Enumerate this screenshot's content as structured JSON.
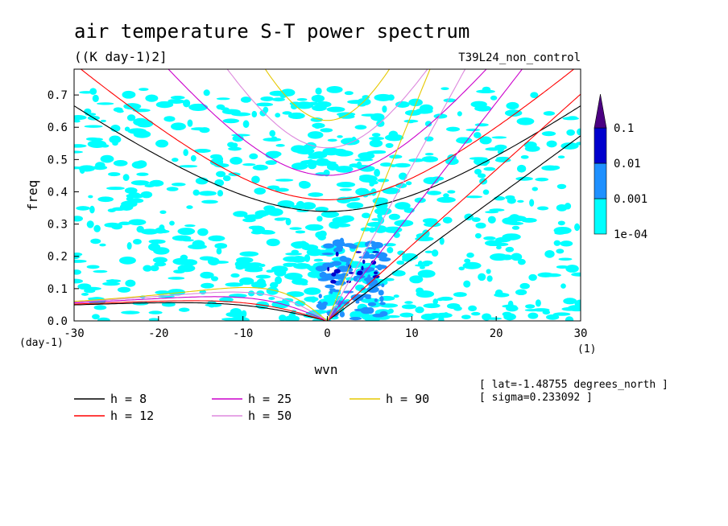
{
  "chart_data": {
    "type": "heatmap",
    "title": "air temperature S-T power spectrum",
    "units": "((K day-1)2]",
    "experiment": "T39L24_non_control",
    "xlabel": "wvn",
    "ylabel": "freq",
    "x_unit": "(1)",
    "y_unit": "(day-1)",
    "xlim": [
      -30,
      30
    ],
    "ylim": [
      0,
      0.78
    ],
    "xticks": [
      "-30",
      "-20",
      "-10",
      "0",
      "10",
      "20",
      "30"
    ],
    "yticks": [
      "0.0",
      "0.1",
      "0.2",
      "0.3",
      "0.4",
      "0.5",
      "0.6",
      "0.7"
    ],
    "contour_levels": [
      "1e-04",
      "0.001",
      "0.01",
      "0.1"
    ],
    "level_colors": [
      "#00ffff",
      "#1e90ff",
      "#0000cd",
      "#4b0082"
    ],
    "dispersion_curves": [
      {
        "label": "h =  8",
        "h": 8,
        "color": "#000000"
      },
      {
        "label": "h = 12",
        "h": 12,
        "color": "#ff0000"
      },
      {
        "label": "h = 25",
        "h": 25,
        "color": "#cc00cc"
      },
      {
        "label": "h = 50",
        "h": 50,
        "color": "#dd88dd"
      },
      {
        "label": "h = 90",
        "h": 90,
        "color": "#e6c800"
      }
    ],
    "annotations": [
      "[ lat=-1.48755 degrees_north ]",
      "[ sigma=0.233092 ]"
    ]
  }
}
